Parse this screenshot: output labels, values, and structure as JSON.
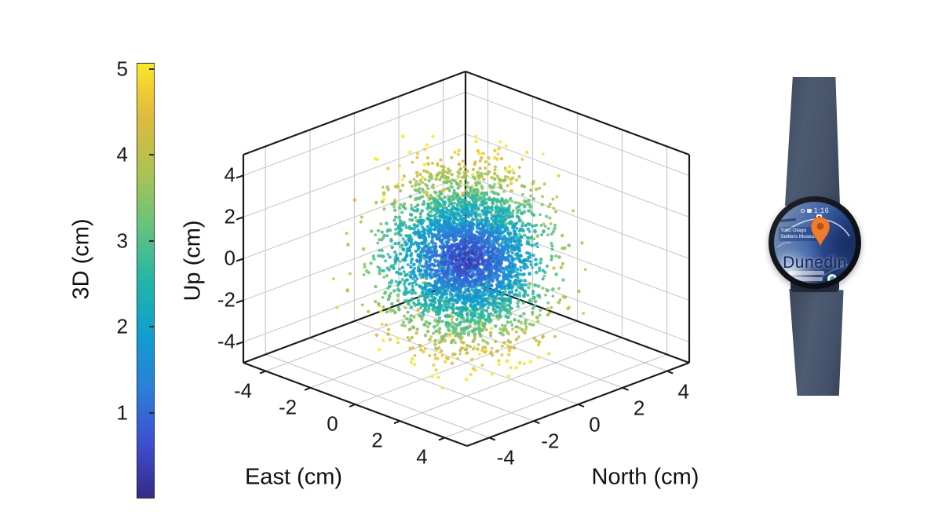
{
  "figure": {
    "background": "#ffffff"
  },
  "colorbar": {
    "label": "3D (cm)",
    "ticks": [
      1,
      2,
      3,
      4,
      5
    ],
    "range": [
      0,
      5.07
    ],
    "colormap": "parula",
    "stops": [
      [
        0.0,
        "#352a87"
      ],
      [
        0.125,
        "#3d4fd0"
      ],
      [
        0.25,
        "#2c7ed8"
      ],
      [
        0.375,
        "#0f9fd0"
      ],
      [
        0.5,
        "#24b5a8"
      ],
      [
        0.625,
        "#66c37d"
      ],
      [
        0.75,
        "#abc351"
      ],
      [
        0.875,
        "#ddbb3e"
      ],
      [
        0.94,
        "#f0cd33"
      ],
      [
        1.0,
        "#f7ea28"
      ]
    ]
  },
  "chart_data": {
    "type": "scatter",
    "projection": "3d",
    "title": "",
    "xlabel": "East (cm)",
    "ylabel": "North (cm)",
    "zlabel": "Up (cm)",
    "xlim": [
      -5,
      5
    ],
    "ylim": [
      -5,
      5
    ],
    "zlim": [
      -5,
      5
    ],
    "xticks": [
      -4,
      -2,
      0,
      2,
      4
    ],
    "yticks": [
      -4,
      -2,
      0,
      2,
      4
    ],
    "zticks": [
      -4,
      -2,
      0,
      2,
      4
    ],
    "grid": true,
    "color_variable": "3D (cm)",
    "color_range": [
      0,
      5
    ],
    "n_points": 4000,
    "point_cloud": {
      "center_east": 0,
      "center_north": 0,
      "center_up": 0,
      "std_east": 1.15,
      "std_north": 1.15,
      "std_up": 2.05,
      "clip_horizontal": 4.8,
      "clip_vertical": 4.9
    },
    "seed": 1337
  },
  "watch": {
    "device": "smartwatch-photo",
    "status_time": "1:16",
    "city_label": "Dunedin",
    "map_label_line1": "Toitū Otago",
    "map_label_line2": "Settlers Museum",
    "band_color": "#49566b",
    "pin_color": "#ed7c31"
  }
}
